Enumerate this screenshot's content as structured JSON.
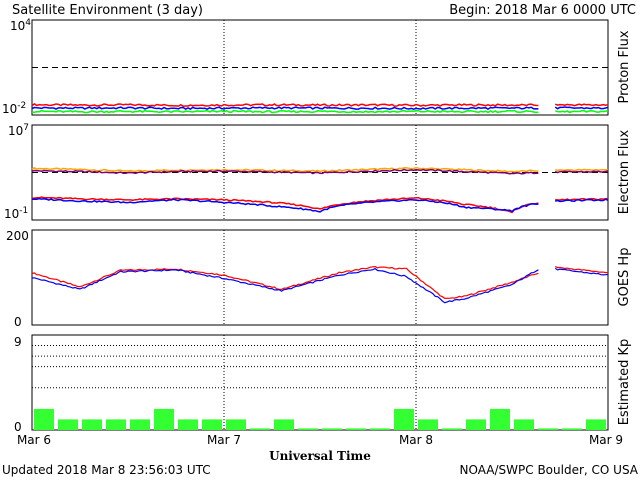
{
  "header": {
    "title": "Satellite Environment (3 day)",
    "begin": "Begin:  2018 Mar 6 0000 UTC"
  },
  "footer": {
    "updated": "Updated 2018 Mar  8 23:56:03 UTC",
    "credit": "NOAA/SWPC Boulder, CO USA"
  },
  "x_axis": {
    "label": "Universal Time",
    "ticks": [
      "Mar 6",
      "Mar 7",
      "Mar 8",
      "Mar 9"
    ]
  },
  "colors": {
    "red": "#ff0000",
    "blue": "#0000ff",
    "green": "#00ff00",
    "orange": "#ffa500",
    "purple": "#7a007a",
    "kp_bar": "#33ff33"
  },
  "chart_data": [
    {
      "type": "line",
      "panel": "proton",
      "ylabel": "Proton Flux",
      "scale": "log",
      "ylim": [
        0.01,
        10000
      ],
      "y_tick_labels": [
        {
          "base": "10",
          "exp": "4"
        },
        {
          "base": "10",
          "exp": "-2"
        }
      ],
      "threshold": 10,
      "x": [
        0,
        0.25,
        0.5,
        0.75,
        1,
        1.25,
        1.5,
        1.75,
        2,
        2.25,
        2.5,
        2.75,
        3
      ],
      "gaps": [
        [
          2.64,
          2.72
        ]
      ],
      "series": [
        {
          "color": "red",
          "values": [
            0.045,
            0.042,
            0.044,
            0.041,
            0.043,
            0.044,
            0.042,
            0.043,
            0.041,
            0.043,
            0.042,
            0.044,
            0.043
          ]
        },
        {
          "color": "blue",
          "values": [
            0.028,
            0.027,
            0.028,
            0.026,
            0.027,
            0.028,
            0.027,
            0.027,
            0.026,
            0.027,
            0.027,
            0.028,
            0.027
          ]
        },
        {
          "color": "green",
          "values": [
            0.017,
            0.016,
            0.017,
            0.016,
            0.017,
            0.016,
            0.017,
            0.016,
            0.017,
            0.016,
            0.017,
            0.016,
            0.017
          ]
        }
      ]
    },
    {
      "type": "line",
      "panel": "electron",
      "ylabel": "Electron Flux",
      "scale": "log",
      "ylim": [
        0.1,
        10000000
      ],
      "y_tick_labels": [
        {
          "base": "10",
          "exp": "7"
        },
        {
          "base": "10",
          "exp": "-1"
        }
      ],
      "threshold": 1000,
      "x": [
        0,
        0.25,
        0.5,
        0.75,
        1,
        1.25,
        1.5,
        1.75,
        2,
        2.25,
        2.5,
        2.75,
        3
      ],
      "gaps": [
        [
          2.64,
          2.72
        ]
      ],
      "series": [
        {
          "color": "orange",
          "values": [
            2200,
            1800,
            1300,
            1600,
            1700,
            1500,
            1300,
            1800,
            2300,
            1700,
            1200,
            1600,
            1700
          ]
        },
        {
          "color": "purple",
          "values": [
            1400,
            1200,
            900,
            1200,
            1300,
            1100,
            900,
            1300,
            1700,
            1200,
            800,
            1100,
            1200
          ]
        },
        {
          "color": "red",
          "values": [
            8,
            6,
            5,
            6,
            5,
            3,
            0.8,
            4,
            7,
            2,
            0.4,
            5,
            6
          ]
        },
        {
          "color": "blue",
          "values": [
            6,
            4,
            3,
            5,
            3,
            1.5,
            0.5,
            3,
            5,
            1.2,
            0.6,
            4,
            5
          ]
        }
      ]
    },
    {
      "type": "line",
      "panel": "hp",
      "ylabel": "GOES Hp",
      "scale": "linear",
      "ylim": [
        0,
        200
      ],
      "y_tick_labels": [
        "200",
        "0"
      ],
      "x": [
        0,
        0.25,
        0.46,
        0.75,
        1.0,
        1.3,
        1.6,
        1.78,
        1.95,
        2.15,
        2.25,
        2.5,
        2.64,
        2.72,
        3.0
      ],
      "gaps": [
        [
          2.64,
          2.72
        ]
      ],
      "series": [
        {
          "color": "red",
          "values": [
            110,
            80,
            115,
            118,
            105,
            75,
            110,
            122,
            118,
            55,
            60,
            90,
            110,
            122,
            110
          ]
        },
        {
          "color": "blue",
          "values": [
            100,
            75,
            112,
            116,
            98,
            72,
            105,
            118,
            102,
            48,
            55,
            85,
            118,
            118,
            105
          ]
        }
      ]
    },
    {
      "type": "bar",
      "panel": "kp",
      "ylabel": "Estimated Kp",
      "ylim": [
        0,
        9
      ],
      "y_tick_labels": [
        "9",
        "0"
      ],
      "gridlines": [
        4,
        6,
        7,
        8
      ],
      "values": [
        2,
        1,
        1,
        1,
        1,
        2,
        1,
        1,
        1,
        0,
        1,
        0,
        0,
        0,
        0,
        2,
        1,
        0,
        1,
        2,
        1,
        0,
        0,
        1
      ]
    }
  ]
}
